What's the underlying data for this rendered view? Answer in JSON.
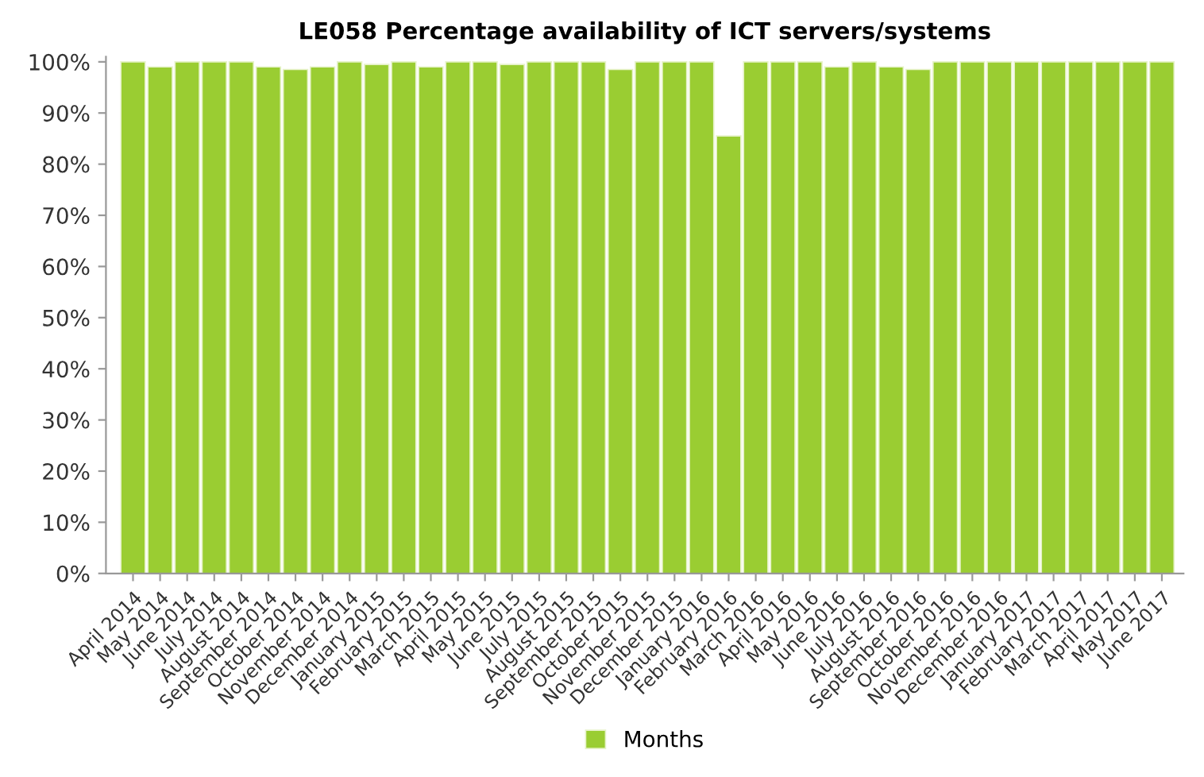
{
  "chart_data": {
    "type": "bar",
    "title": "LE058 Percentage availability of ICT servers/systems",
    "categories": [
      "April 2014",
      "May 2014",
      "June 2014",
      "July 2014",
      "August 2014",
      "September 2014",
      "October 2014",
      "November 2014",
      "December 2014",
      "January 2015",
      "February 2015",
      "March 2015",
      "April 2015",
      "May 2015",
      "June 2015",
      "July 2015",
      "August 2015",
      "September 2015",
      "October 2015",
      "November 2015",
      "December 2015",
      "January 2016",
      "February 2016",
      "March 2016",
      "April 2016",
      "May 2016",
      "June 2016",
      "July 2016",
      "August 2016",
      "September 2016",
      "October 2016",
      "November 2016",
      "December 2016",
      "January 2017",
      "February 2017",
      "March 2017",
      "April 2017",
      "May 2017",
      "June 2017"
    ],
    "series": [
      {
        "name": "Months",
        "color": "#9acd32",
        "values": [
          100,
          99,
          100,
          100,
          100,
          99,
          98.5,
          99,
          100,
          99.5,
          100,
          99,
          100,
          100,
          99.5,
          100,
          100,
          100,
          98.5,
          100,
          100,
          100,
          85.5,
          100,
          100,
          100,
          99,
          100,
          99,
          98.5,
          100,
          100,
          100,
          100,
          100,
          100,
          100,
          100,
          100
        ]
      }
    ],
    "ylim": [
      0,
      101
    ],
    "yticks": [
      {
        "value": 0,
        "label": "0%"
      },
      {
        "value": 10,
        "label": "10%"
      },
      {
        "value": 20,
        "label": "20%"
      },
      {
        "value": 30,
        "label": "30%"
      },
      {
        "value": 40,
        "label": "40%"
      },
      {
        "value": 50,
        "label": "50%"
      },
      {
        "value": 60,
        "label": "60%"
      },
      {
        "value": 70,
        "label": "70%"
      },
      {
        "value": 80,
        "label": "80%"
      },
      {
        "value": 90,
        "label": "90%"
      },
      {
        "value": 100,
        "label": "100%"
      }
    ],
    "grid": false,
    "legend": "bottom"
  }
}
